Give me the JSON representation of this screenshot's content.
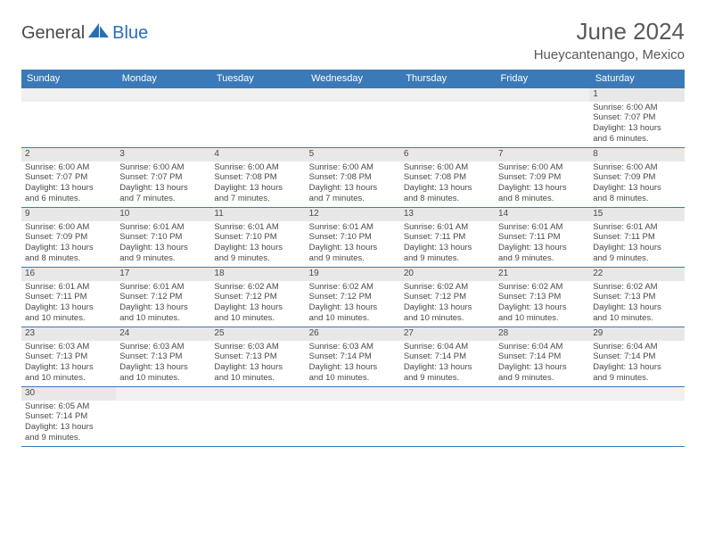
{
  "brand": {
    "part1": "General",
    "part2": "Blue"
  },
  "title": "June 2024",
  "location": "Hueycantenango, Mexico",
  "colors": {
    "header_bg": "#3a7ab8",
    "header_text": "#ffffff",
    "daynum_bg": "#e8e8e8",
    "border": "#3a7ab8",
    "title_color": "#595959",
    "logo_gray": "#4a4a4a",
    "logo_blue": "#2a6fb5",
    "sail_color": "#2a6fb5"
  },
  "day_headers": [
    "Sunday",
    "Monday",
    "Tuesday",
    "Wednesday",
    "Thursday",
    "Friday",
    "Saturday"
  ],
  "weeks": [
    [
      null,
      null,
      null,
      null,
      null,
      null,
      {
        "n": "1",
        "sr": "Sunrise: 6:00 AM",
        "ss": "Sunset: 7:07 PM",
        "d1": "Daylight: 13 hours",
        "d2": "and 6 minutes."
      }
    ],
    [
      {
        "n": "2",
        "sr": "Sunrise: 6:00 AM",
        "ss": "Sunset: 7:07 PM",
        "d1": "Daylight: 13 hours",
        "d2": "and 6 minutes."
      },
      {
        "n": "3",
        "sr": "Sunrise: 6:00 AM",
        "ss": "Sunset: 7:07 PM",
        "d1": "Daylight: 13 hours",
        "d2": "and 7 minutes."
      },
      {
        "n": "4",
        "sr": "Sunrise: 6:00 AM",
        "ss": "Sunset: 7:08 PM",
        "d1": "Daylight: 13 hours",
        "d2": "and 7 minutes."
      },
      {
        "n": "5",
        "sr": "Sunrise: 6:00 AM",
        "ss": "Sunset: 7:08 PM",
        "d1": "Daylight: 13 hours",
        "d2": "and 7 minutes."
      },
      {
        "n": "6",
        "sr": "Sunrise: 6:00 AM",
        "ss": "Sunset: 7:08 PM",
        "d1": "Daylight: 13 hours",
        "d2": "and 8 minutes."
      },
      {
        "n": "7",
        "sr": "Sunrise: 6:00 AM",
        "ss": "Sunset: 7:09 PM",
        "d1": "Daylight: 13 hours",
        "d2": "and 8 minutes."
      },
      {
        "n": "8",
        "sr": "Sunrise: 6:00 AM",
        "ss": "Sunset: 7:09 PM",
        "d1": "Daylight: 13 hours",
        "d2": "and 8 minutes."
      }
    ],
    [
      {
        "n": "9",
        "sr": "Sunrise: 6:00 AM",
        "ss": "Sunset: 7:09 PM",
        "d1": "Daylight: 13 hours",
        "d2": "and 8 minutes."
      },
      {
        "n": "10",
        "sr": "Sunrise: 6:01 AM",
        "ss": "Sunset: 7:10 PM",
        "d1": "Daylight: 13 hours",
        "d2": "and 9 minutes."
      },
      {
        "n": "11",
        "sr": "Sunrise: 6:01 AM",
        "ss": "Sunset: 7:10 PM",
        "d1": "Daylight: 13 hours",
        "d2": "and 9 minutes."
      },
      {
        "n": "12",
        "sr": "Sunrise: 6:01 AM",
        "ss": "Sunset: 7:10 PM",
        "d1": "Daylight: 13 hours",
        "d2": "and 9 minutes."
      },
      {
        "n": "13",
        "sr": "Sunrise: 6:01 AM",
        "ss": "Sunset: 7:11 PM",
        "d1": "Daylight: 13 hours",
        "d2": "and 9 minutes."
      },
      {
        "n": "14",
        "sr": "Sunrise: 6:01 AM",
        "ss": "Sunset: 7:11 PM",
        "d1": "Daylight: 13 hours",
        "d2": "and 9 minutes."
      },
      {
        "n": "15",
        "sr": "Sunrise: 6:01 AM",
        "ss": "Sunset: 7:11 PM",
        "d1": "Daylight: 13 hours",
        "d2": "and 9 minutes."
      }
    ],
    [
      {
        "n": "16",
        "sr": "Sunrise: 6:01 AM",
        "ss": "Sunset: 7:11 PM",
        "d1": "Daylight: 13 hours",
        "d2": "and 10 minutes."
      },
      {
        "n": "17",
        "sr": "Sunrise: 6:01 AM",
        "ss": "Sunset: 7:12 PM",
        "d1": "Daylight: 13 hours",
        "d2": "and 10 minutes."
      },
      {
        "n": "18",
        "sr": "Sunrise: 6:02 AM",
        "ss": "Sunset: 7:12 PM",
        "d1": "Daylight: 13 hours",
        "d2": "and 10 minutes."
      },
      {
        "n": "19",
        "sr": "Sunrise: 6:02 AM",
        "ss": "Sunset: 7:12 PM",
        "d1": "Daylight: 13 hours",
        "d2": "and 10 minutes."
      },
      {
        "n": "20",
        "sr": "Sunrise: 6:02 AM",
        "ss": "Sunset: 7:12 PM",
        "d1": "Daylight: 13 hours",
        "d2": "and 10 minutes."
      },
      {
        "n": "21",
        "sr": "Sunrise: 6:02 AM",
        "ss": "Sunset: 7:13 PM",
        "d1": "Daylight: 13 hours",
        "d2": "and 10 minutes."
      },
      {
        "n": "22",
        "sr": "Sunrise: 6:02 AM",
        "ss": "Sunset: 7:13 PM",
        "d1": "Daylight: 13 hours",
        "d2": "and 10 minutes."
      }
    ],
    [
      {
        "n": "23",
        "sr": "Sunrise: 6:03 AM",
        "ss": "Sunset: 7:13 PM",
        "d1": "Daylight: 13 hours",
        "d2": "and 10 minutes."
      },
      {
        "n": "24",
        "sr": "Sunrise: 6:03 AM",
        "ss": "Sunset: 7:13 PM",
        "d1": "Daylight: 13 hours",
        "d2": "and 10 minutes."
      },
      {
        "n": "25",
        "sr": "Sunrise: 6:03 AM",
        "ss": "Sunset: 7:13 PM",
        "d1": "Daylight: 13 hours",
        "d2": "and 10 minutes."
      },
      {
        "n": "26",
        "sr": "Sunrise: 6:03 AM",
        "ss": "Sunset: 7:14 PM",
        "d1": "Daylight: 13 hours",
        "d2": "and 10 minutes."
      },
      {
        "n": "27",
        "sr": "Sunrise: 6:04 AM",
        "ss": "Sunset: 7:14 PM",
        "d1": "Daylight: 13 hours",
        "d2": "and 9 minutes."
      },
      {
        "n": "28",
        "sr": "Sunrise: 6:04 AM",
        "ss": "Sunset: 7:14 PM",
        "d1": "Daylight: 13 hours",
        "d2": "and 9 minutes."
      },
      {
        "n": "29",
        "sr": "Sunrise: 6:04 AM",
        "ss": "Sunset: 7:14 PM",
        "d1": "Daylight: 13 hours",
        "d2": "and 9 minutes."
      }
    ],
    [
      {
        "n": "30",
        "sr": "Sunrise: 6:05 AM",
        "ss": "Sunset: 7:14 PM",
        "d1": "Daylight: 13 hours",
        "d2": "and 9 minutes."
      },
      null,
      null,
      null,
      null,
      null,
      null
    ]
  ]
}
